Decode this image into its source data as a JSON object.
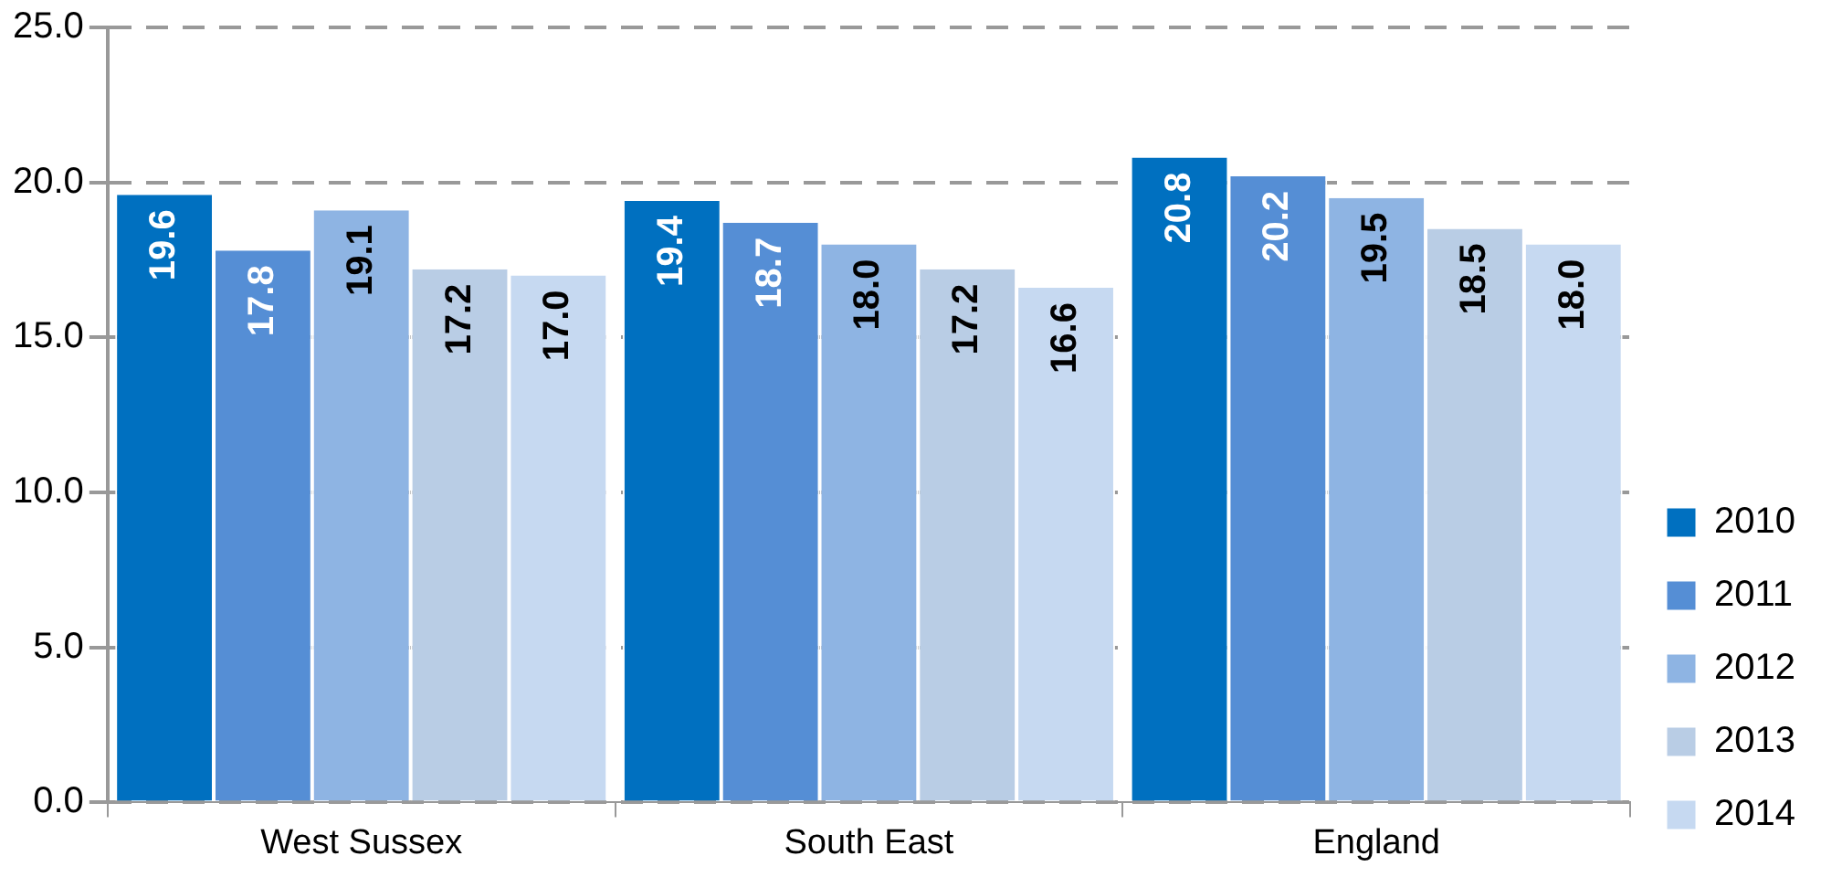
{
  "chart_data": {
    "type": "bar",
    "categories": [
      "West Sussex",
      "South East",
      "England"
    ],
    "series": [
      {
        "name": "2010",
        "color": "#0070c0",
        "values": [
          19.6,
          19.4,
          20.8
        ],
        "value_labels": [
          "19.6",
          "19.4",
          "20.8"
        ]
      },
      {
        "name": "2011",
        "color": "#558ed5",
        "values": [
          17.8,
          18.7,
          20.2
        ],
        "value_labels": [
          "17.8",
          "18.7",
          "20.2"
        ]
      },
      {
        "name": "2012",
        "color": "#8eb4e3",
        "values": [
          19.1,
          18.0,
          19.5
        ],
        "value_labels": [
          "19.1",
          "18.0",
          "19.5"
        ]
      },
      {
        "name": "2013",
        "color": "#b9cde5",
        "values": [
          17.2,
          17.2,
          18.5
        ],
        "value_labels": [
          "17.2",
          "17.2",
          "18.5"
        ]
      },
      {
        "name": "2014",
        "color": "#c6d9f1",
        "values": [
          17.0,
          16.6,
          18.0
        ],
        "value_labels": [
          "17.0",
          "16.6",
          "18.0"
        ]
      }
    ],
    "ylim": [
      0,
      25
    ],
    "yticks": [
      {
        "value": 0,
        "label": "0.0"
      },
      {
        "value": 5,
        "label": "5.0"
      },
      {
        "value": 10,
        "label": "10.0"
      },
      {
        "value": 15,
        "label": "15.0"
      },
      {
        "value": 20,
        "label": "20.0"
      },
      {
        "value": 25,
        "label": "25.0"
      }
    ],
    "grid": "y",
    "legend": "right"
  }
}
